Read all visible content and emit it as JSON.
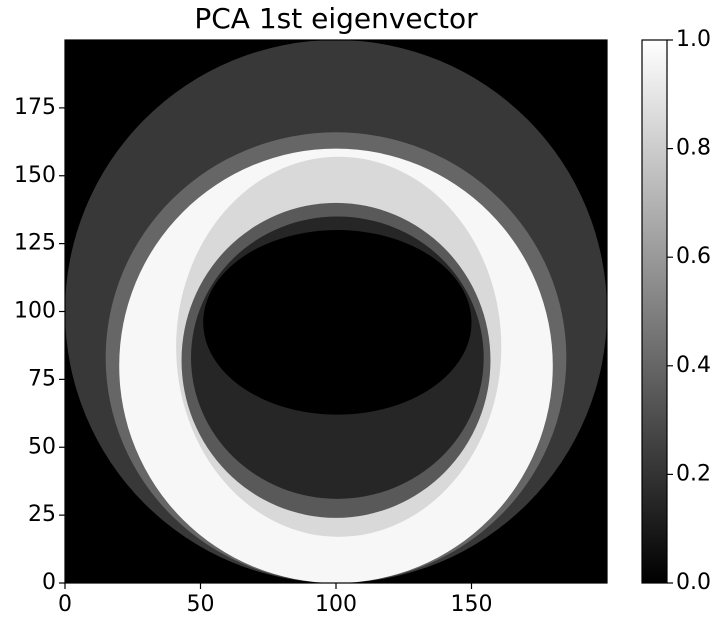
{
  "chart_data": {
    "type": "image",
    "title": "PCA 1st eigenvector",
    "colormap": "gray",
    "xlim": [
      0,
      200
    ],
    "ylim": [
      0,
      200
    ],
    "xticks": [
      0,
      50,
      100,
      150
    ],
    "yticks": [
      0,
      25,
      50,
      75,
      100,
      125,
      150,
      175
    ],
    "background": 0,
    "regions": [
      {
        "cx": 100,
        "cy": 100,
        "rx": 100,
        "ry": 100,
        "value": 0.22
      },
      {
        "cx": 100,
        "cy": 83,
        "rx": 85,
        "ry": 83,
        "value": 0.4
      },
      {
        "cx": 100,
        "cy": 80,
        "rx": 80,
        "ry": 80,
        "value": 0.97
      },
      {
        "cx": 101,
        "cy": 87,
        "rx": 60,
        "ry": 70,
        "value": 0.85
      },
      {
        "cx": 100,
        "cy": 82,
        "rx": 57,
        "ry": 58,
        "value": 0.35
      },
      {
        "cx": 100.5,
        "cy": 83,
        "rx": 54,
        "ry": 52,
        "value": 0.15
      },
      {
        "cx": 100.5,
        "cy": 96,
        "rx": 49.5,
        "ry": 34,
        "value": 0
      }
    ],
    "clim": [
      0,
      1
    ],
    "cticks": [
      {
        "value": 0,
        "label": "0.0"
      },
      {
        "value": 0.2,
        "label": "0.2"
      },
      {
        "value": 0.4,
        "label": "0.4"
      },
      {
        "value": 0.6,
        "label": "0.6"
      },
      {
        "value": 0.8,
        "label": "0.8"
      },
      {
        "value": 1,
        "label": "1.0"
      }
    ]
  }
}
